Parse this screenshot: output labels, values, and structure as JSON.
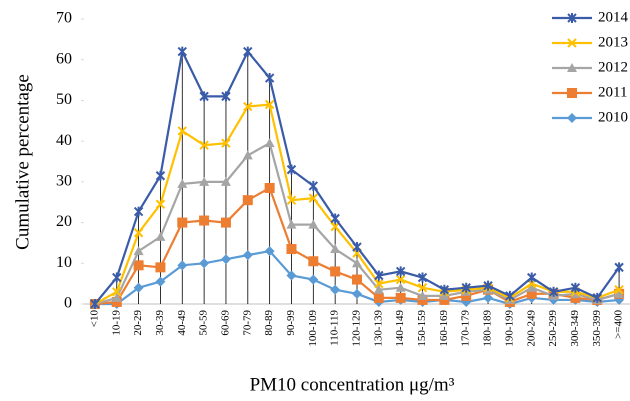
{
  "chart_data": {
    "type": "line",
    "x_label": "PM10 concentration μg/m³",
    "y_label": "Cumulative percentage",
    "categories": [
      "<10",
      "10-19",
      "20-29",
      "30-39",
      "40-49",
      "50-59",
      "60-69",
      "70-79",
      "80-89",
      "90-99",
      "100-109",
      "110-119",
      "120-129",
      "130-139",
      "140-149",
      "150-159",
      "160-169",
      "170-179",
      "180-189",
      "190-199",
      "200-249",
      "250-299",
      "300-349",
      "350-399",
      ">=400"
    ],
    "series": [
      {
        "name": "2014",
        "color": "#3a5ba8",
        "marker": "star",
        "values": [
          0,
          6.5,
          22.7,
          31.5,
          62,
          51,
          51,
          62,
          55.5,
          33,
          29,
          21,
          14,
          7,
          8,
          6.5,
          3.5,
          4,
          4.5,
          2,
          6.5,
          3,
          4,
          1.5,
          9
        ]
      },
      {
        "name": "2013",
        "color": "#ffc000",
        "marker": "x",
        "values": [
          0,
          3,
          17.5,
          24.5,
          42.5,
          39,
          39.5,
          48.5,
          49,
          25.5,
          26,
          19,
          12.5,
          5,
          6,
          4,
          3,
          3.5,
          4,
          1.5,
          5,
          3,
          3,
          1.5,
          3.5
        ]
      },
      {
        "name": "2012",
        "color": "#a5a5a5",
        "marker": "triangle",
        "values": [
          0,
          1.5,
          13,
          16.5,
          29.5,
          30,
          30,
          36.5,
          39.5,
          19.5,
          19.5,
          13.5,
          10,
          3.5,
          4,
          2,
          2,
          3,
          3.5,
          1,
          4,
          2,
          2.5,
          1,
          2.5
        ]
      },
      {
        "name": "2011",
        "color": "#ed7d31",
        "marker": "square",
        "values": [
          0,
          0.5,
          9.5,
          9,
          20,
          20.5,
          20,
          25.5,
          28.5,
          13.5,
          10.5,
          8,
          6,
          1.5,
          1.5,
          1,
          1,
          2,
          3.5,
          0.5,
          2.5,
          2.5,
          1.5,
          1,
          2.5
        ]
      },
      {
        "name": "2010",
        "color": "#5b9bd5",
        "marker": "diamond",
        "values": [
          0,
          0,
          4,
          5.5,
          9.5,
          10,
          11,
          12,
          13,
          7,
          6,
          3.5,
          2.5,
          0.5,
          1,
          0.5,
          1,
          0.5,
          1.5,
          0,
          1.5,
          1,
          1,
          0.5,
          1
        ]
      }
    ],
    "ylim": [
      0,
      70
    ],
    "yticks": [
      0,
      10,
      20,
      30,
      40,
      50,
      60,
      70
    ],
    "drop_lines": true,
    "legend": "upper right"
  }
}
